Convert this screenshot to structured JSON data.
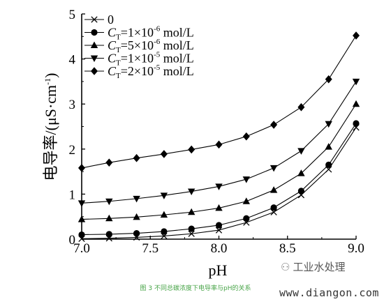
{
  "chart_data": {
    "type": "line",
    "xlabel": "pH",
    "ylabel": "电导率/(μS·cm⁻¹)",
    "xlim": [
      7.0,
      9.0
    ],
    "ylim": [
      0,
      5
    ],
    "x_ticks": [
      "7.0",
      "7.5",
      "8.0",
      "8.5",
      "9.0"
    ],
    "y_ticks": [
      "0",
      "1",
      "2",
      "3",
      "4",
      "5"
    ],
    "grid": false,
    "legend_position": "top-left",
    "x": [
      7.0,
      7.2,
      7.4,
      7.6,
      7.8,
      8.0,
      8.2,
      8.4,
      8.6,
      8.8,
      9.0
    ],
    "series": [
      {
        "name": "0",
        "marker": "x",
        "values": [
          0.01,
          0.02,
          0.04,
          0.07,
          0.12,
          0.2,
          0.37,
          0.6,
          0.98,
          1.55,
          2.48
        ]
      },
      {
        "name": "C_T=1×10^-6 mol/L",
        "marker": "circle",
        "values": [
          0.1,
          0.11,
          0.13,
          0.17,
          0.23,
          0.31,
          0.46,
          0.7,
          1.07,
          1.65,
          2.57
        ]
      },
      {
        "name": "C_T=5×10^-6 mol/L",
        "marker": "triangle-up",
        "values": [
          0.44,
          0.46,
          0.49,
          0.54,
          0.6,
          0.69,
          0.84,
          1.09,
          1.46,
          2.05,
          3.0
        ]
      },
      {
        "name": "C_T=1×10^-5 mol/L",
        "marker": "triangle-down",
        "values": [
          0.8,
          0.84,
          0.9,
          0.97,
          1.06,
          1.17,
          1.33,
          1.58,
          1.96,
          2.56,
          3.5
        ]
      },
      {
        "name": "C_T=2×10^-5 mol/L",
        "marker": "diamond",
        "values": [
          1.58,
          1.7,
          1.8,
          1.89,
          1.99,
          2.1,
          2.28,
          2.54,
          2.93,
          3.55,
          4.52
        ]
      }
    ]
  },
  "legend": [
    {
      "plain": "0"
    },
    {
      "sym": "C",
      "sub": "T",
      "pre": "=1×10",
      "exp": "-6",
      "post": " mol/L"
    },
    {
      "sym": "C",
      "sub": "T",
      "pre": "=5×10",
      "exp": "-6",
      "post": " mol/L"
    },
    {
      "sym": "C",
      "sub": "T",
      "pre": "=1×10",
      "exp": "-5",
      "post": " mol/L"
    },
    {
      "sym": "C",
      "sub": "T",
      "pre": "=2×10",
      "exp": "-5",
      "post": " mol/L"
    }
  ],
  "ylabel_parts": {
    "main": "电导率/(μS·cm",
    "exp": "-1",
    "close": ")"
  },
  "caption": "图 3 不同总碳浓度下电导率与pH的关系",
  "watermark": "工业水处理",
  "site": "www.diangon.com"
}
